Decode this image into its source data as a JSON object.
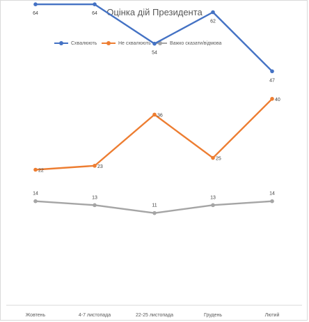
{
  "chart_data": {
    "type": "line",
    "title": "Оцінка дій Президента",
    "categories": [
      "Жовтень",
      "4-7 листопада",
      "22-25 листопада",
      "Грудень",
      "Лютий"
    ],
    "series": [
      {
        "name": "Схвалюють",
        "color": "#4472c4",
        "values": [
          64,
          64,
          54,
          62,
          47
        ]
      },
      {
        "name": "Не схвалюють",
        "color": "#ed7d31",
        "values": [
          22,
          23,
          36,
          25,
          40
        ]
      },
      {
        "name": "Важко сказати/відмова",
        "color": "#a5a5a5",
        "values": [
          14,
          13,
          11,
          13,
          14
        ]
      }
    ],
    "xlabel": "",
    "ylabel": "",
    "ylim": [
      0,
      70
    ],
    "grid": false,
    "legend": "top",
    "data_labels": true
  }
}
